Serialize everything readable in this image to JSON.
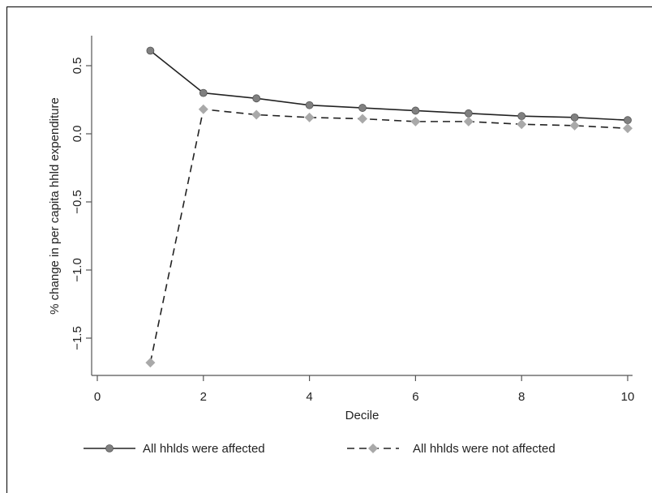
{
  "chart_data": {
    "type": "line",
    "xlabel": "Decile",
    "ylabel": "% change in per capita hhld expenditure",
    "xlim": [
      0,
      10
    ],
    "ylim": [
      -1.75,
      0.65
    ],
    "xticks": [
      0,
      2,
      4,
      6,
      8,
      10
    ],
    "yticks": [
      0.5,
      0.0,
      -0.5,
      -1.0,
      -1.5
    ],
    "xtick_labels": [
      "0",
      "2",
      "4",
      "6",
      "8",
      "10"
    ],
    "ytick_labels": [
      "0.5",
      "0.0",
      "-0.5",
      "-1.0",
      "-1.5"
    ],
    "grid": false,
    "legend_position": "bottom",
    "series": [
      {
        "name": "All hhlds were affected",
        "line_style": "solid",
        "marker": "circle",
        "line_color": "#222222",
        "marker_color": "#808080",
        "x": [
          1,
          2,
          3,
          4,
          5,
          6,
          7,
          8,
          9,
          10
        ],
        "y": [
          0.61,
          0.3,
          0.26,
          0.21,
          0.19,
          0.17,
          0.15,
          0.13,
          0.12,
          0.1
        ]
      },
      {
        "name": "All hhlds were not affected",
        "line_style": "dashed",
        "marker": "diamond",
        "line_color": "#222222",
        "marker_color": "#a9a9a9",
        "x": [
          1,
          2,
          3,
          4,
          5,
          6,
          7,
          8,
          9,
          10
        ],
        "y": [
          -1.68,
          0.18,
          0.14,
          0.12,
          0.11,
          0.09,
          0.09,
          0.07,
          0.06,
          0.04
        ]
      }
    ]
  }
}
